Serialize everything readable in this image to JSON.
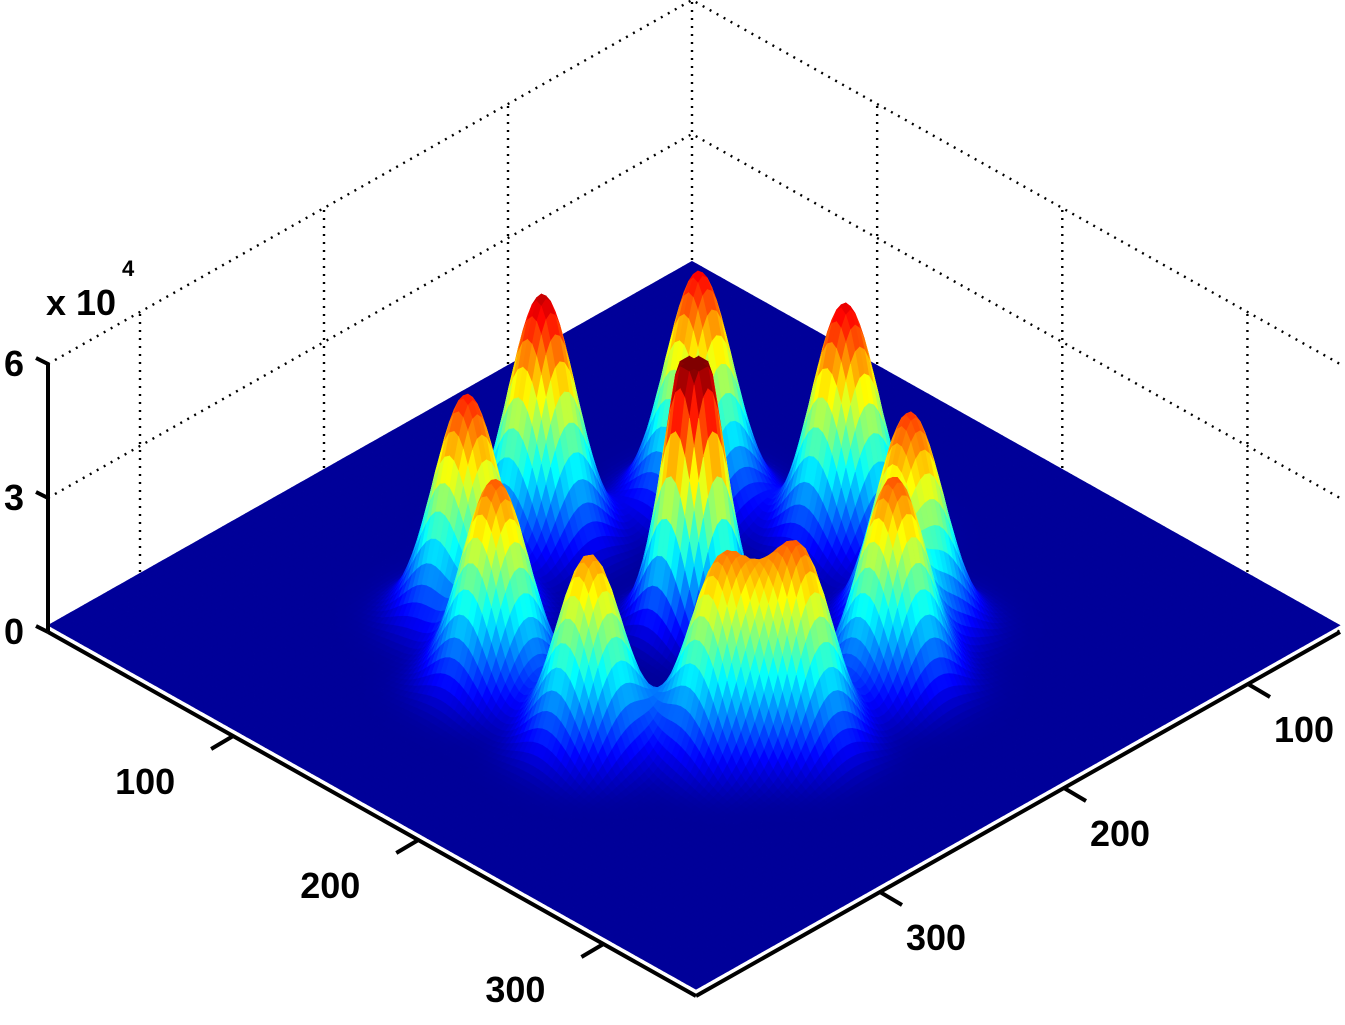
{
  "chart_data": {
    "type": "surface",
    "title": "",
    "xlabel": "",
    "ylabel": "",
    "zlabel": "",
    "z_scale_label": "x 10",
    "z_scale_exponent": "4",
    "xlim": [
      0,
      350
    ],
    "ylim": [
      0,
      350
    ],
    "zlim": [
      0,
      60000
    ],
    "x_ticks": [
      "100",
      "200",
      "300"
    ],
    "y_ticks": [
      "100",
      "200",
      "300"
    ],
    "z_ticks": [
      "0",
      "3",
      "6"
    ],
    "z_tick_values": [
      0,
      30000,
      60000
    ],
    "grid": true,
    "colormap": "jet",
    "colors": {
      "low": "#00008f",
      "high": "#7f0000"
    },
    "baseline": 1500,
    "peaks": [
      {
        "x": 175,
        "y": 175,
        "z": 60000,
        "sigma": 11,
        "flat_top": true
      },
      {
        "x": 175,
        "y": 93,
        "z": 55000,
        "sigma": 13
      },
      {
        "x": 93,
        "y": 175,
        "z": 53000,
        "sigma": 13
      },
      {
        "x": 115,
        "y": 118,
        "z": 52000,
        "sigma": 13
      },
      {
        "x": 118,
        "y": 235,
        "z": 48000,
        "sigma": 13
      },
      {
        "x": 233,
        "y": 110,
        "z": 50000,
        "sigma": 13
      },
      {
        "x": 150,
        "y": 258,
        "z": 46000,
        "sigma": 13
      },
      {
        "x": 258,
        "y": 150,
        "z": 46000,
        "sigma": 13
      },
      {
        "x": 262,
        "y": 205,
        "z": 43000,
        "sigma": 13
      },
      {
        "x": 205,
        "y": 262,
        "z": 43000,
        "sigma": 13
      },
      {
        "x": 228,
        "y": 242,
        "z": 41000,
        "sigma": 13
      }
    ]
  }
}
